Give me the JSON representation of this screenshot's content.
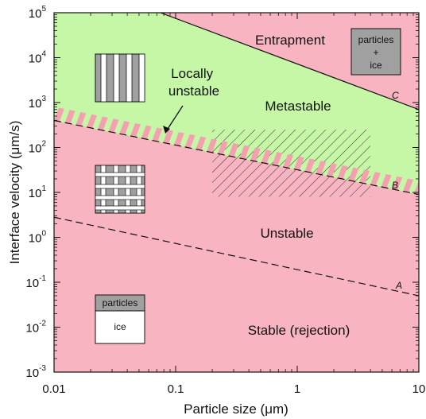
{
  "chart_data": {
    "type": "line",
    "title": "",
    "xlabel": "Particle size (μm)",
    "ylabel": "Interface velocity (μm/s)",
    "x_scale": "log",
    "y_scale": "log",
    "xlim": [
      0.01,
      10
    ],
    "ylim": [
      0.001,
      100000
    ],
    "x_ticks": [
      {
        "value": 0.01,
        "label": "0.01"
      },
      {
        "value": 0.1,
        "label": "0.1"
      },
      {
        "value": 1,
        "label": "1"
      },
      {
        "value": 10,
        "label": "10"
      }
    ],
    "y_ticks": [
      {
        "value": 0.001,
        "base": "10",
        "exp": "-3"
      },
      {
        "value": 0.01,
        "base": "10",
        "exp": "-2"
      },
      {
        "value": 0.1,
        "base": "10",
        "exp": "-1"
      },
      {
        "value": 1,
        "base": "10",
        "exp": "0"
      },
      {
        "value": 10,
        "base": "10",
        "exp": "1"
      },
      {
        "value": 100,
        "base": "10",
        "exp": "2"
      },
      {
        "value": 1000,
        "base": "10",
        "exp": "3"
      },
      {
        "value": 10000,
        "base": "10",
        "exp": "4"
      },
      {
        "value": 100000,
        "base": "10",
        "exp": "5"
      }
    ],
    "curves": [
      {
        "name": "A",
        "style": "dashed",
        "x": [
          0.01,
          10
        ],
        "y": [
          2.8,
          0.05
        ]
      },
      {
        "name": "B",
        "style": "dashed",
        "x": [
          0.01,
          10
        ],
        "y": [
          400,
          9
        ]
      },
      {
        "name": "C",
        "style": "solid",
        "x": [
          0.075,
          10
        ],
        "y": [
          100000,
          700
        ]
      }
    ],
    "regions": [
      {
        "label": "Entrapment",
        "x": 1.3,
        "y": 40000
      },
      {
        "label": "Metastable",
        "x": 1.5,
        "y": 1200
      },
      {
        "label": "Locally unstable",
        "x": 0.45,
        "y": 500
      },
      {
        "label": "Unstable",
        "x": 1.3,
        "y": 1.5
      },
      {
        "label": "Stable (rejection)",
        "x": 1.3,
        "y": 0.015
      }
    ],
    "hatched_range": {
      "x": [
        0.2,
        4
      ],
      "y": [
        8,
        250
      ]
    },
    "colors": {
      "stable_region": "#f8b4c0",
      "metastable_region": "#c6f7a6",
      "band_stripe": "#f4a0b0",
      "schematic_gray": "#a0a0a0"
    }
  },
  "insets": {
    "entrapment_box": [
      "particles",
      "+",
      "ice"
    ],
    "rejection_box": {
      "top": "particles",
      "bottom": "ice"
    }
  }
}
